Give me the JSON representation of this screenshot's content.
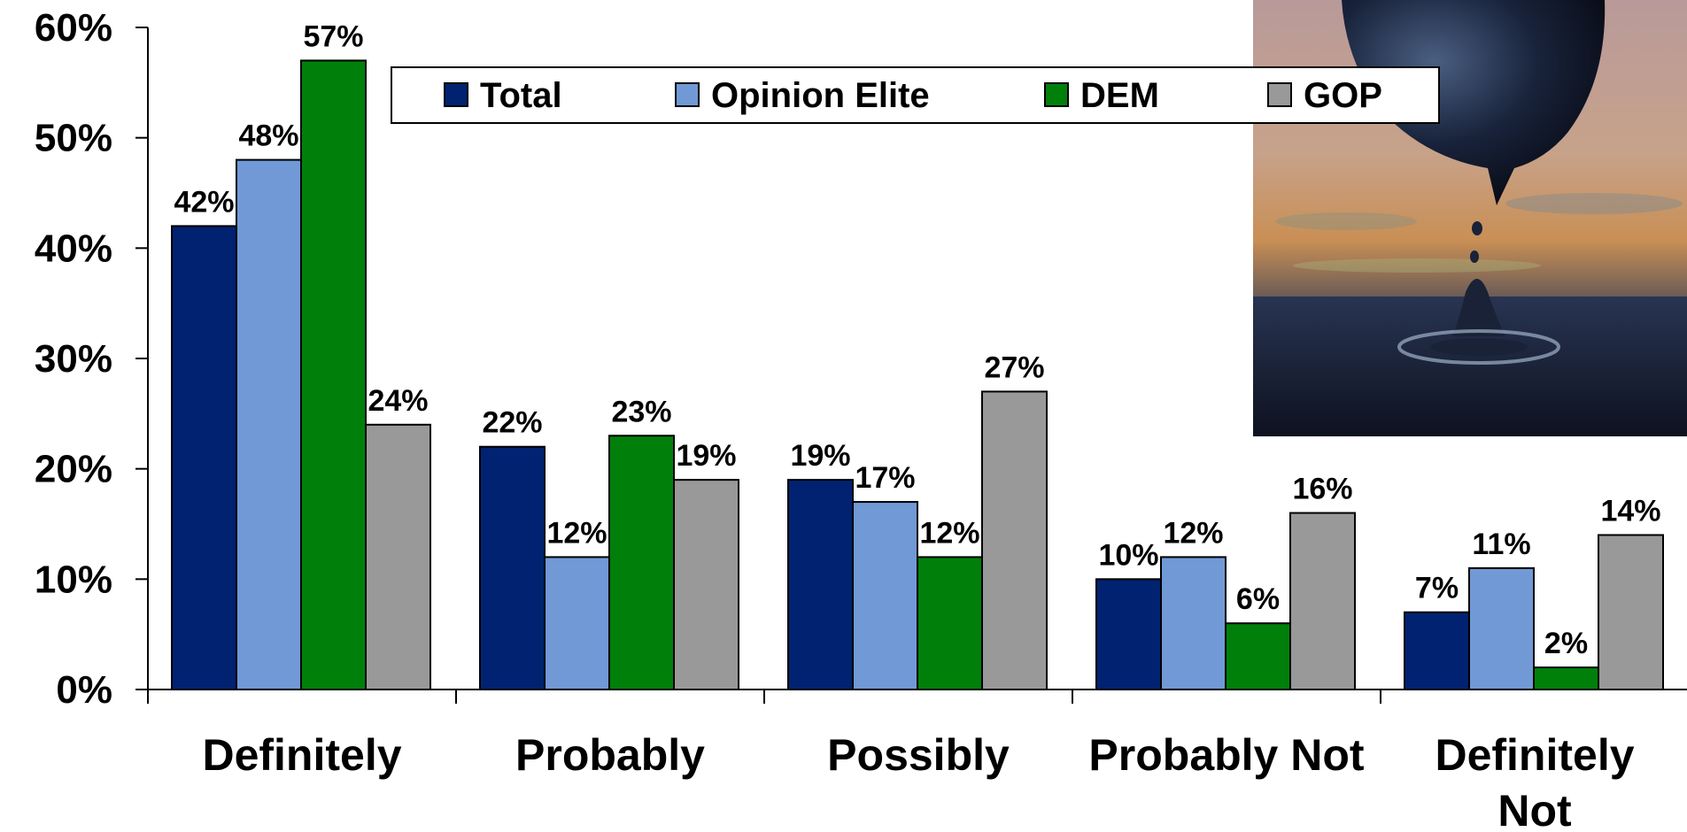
{
  "chart_data": {
    "type": "bar",
    "categories": [
      [
        "Definitely"
      ],
      [
        "Probably"
      ],
      [
        "Possibly"
      ],
      [
        "Probably Not"
      ],
      [
        "Definitely",
        "Not"
      ]
    ],
    "series": [
      {
        "name": "Total",
        "color": "#002270",
        "values": [
          42,
          22,
          19,
          10,
          7
        ],
        "labels": [
          "42%",
          "22%",
          "19%",
          "10%",
          "7%"
        ]
      },
      {
        "name": "Opinion Elite",
        "color": "#7099D6",
        "values": [
          48,
          12,
          17,
          12,
          11
        ],
        "labels": [
          "48%",
          "12%",
          "17%",
          "12%",
          "11%"
        ]
      },
      {
        "name": "DEM",
        "color": "#00800A",
        "values": [
          57,
          23,
          12,
          6,
          2
        ],
        "labels": [
          "57%",
          "23%",
          "12%",
          "6%",
          "2%"
        ]
      },
      {
        "name": "GOP",
        "color": "#999999",
        "values": [
          24,
          19,
          27,
          16,
          14
        ],
        "labels": [
          "24%",
          "19%",
          "27%",
          "16%",
          "14%"
        ]
      }
    ],
    "ylim": [
      0,
      60
    ],
    "yticks": [
      0,
      10,
      20,
      30,
      40,
      50,
      60
    ],
    "ytick_labels": [
      "0%",
      "10%",
      "20%",
      "30%",
      "40%",
      "50%",
      "60%"
    ],
    "grid": false,
    "legend_position": "top",
    "title": "",
    "xlabel": "",
    "ylabel": ""
  },
  "photo": {
    "description_icon": "oil-drop-globe-photo-icon"
  }
}
